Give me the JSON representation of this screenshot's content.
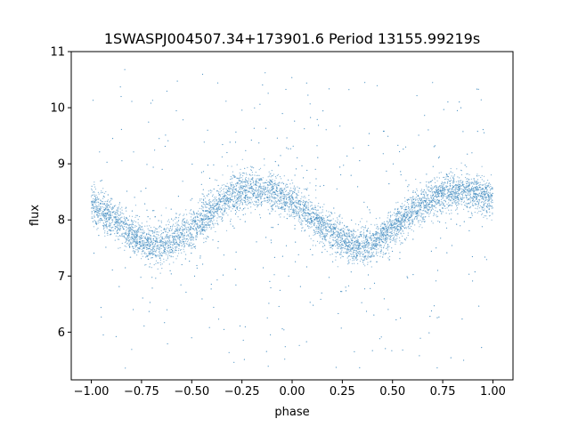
{
  "chart_data": {
    "type": "scatter",
    "title": "1SWASPJ004507.34+173901.6 Period 13155.99219s",
    "xlabel": "phase",
    "ylabel": "flux",
    "xlim": [
      -1.1,
      1.1
    ],
    "ylim": [
      5.15,
      11.0
    ],
    "x_ticks": [
      -1.0,
      -0.75,
      -0.5,
      -0.25,
      0.0,
      0.25,
      0.5,
      0.75,
      1.0
    ],
    "x_tick_labels": [
      "−1.00",
      "−0.75",
      "−0.50",
      "−0.25",
      "0.00",
      "0.25",
      "0.50",
      "0.75",
      "1.00"
    ],
    "y_ticks": [
      6,
      7,
      8,
      9,
      10,
      11
    ],
    "y_tick_labels": [
      "6",
      "7",
      "8",
      "9",
      "10",
      "11"
    ],
    "grid": false,
    "legend": "none",
    "point_color": "#1f77b4",
    "x_range_of_points": [
      -1.0,
      1.0
    ],
    "series": [
      {
        "trend_description_points": {
          "x": [
            -1.0,
            -0.9,
            -0.8,
            -0.7,
            -0.6,
            -0.5,
            -0.4,
            -0.3,
            -0.2,
            -0.1,
            0.0,
            0.1,
            0.2,
            0.3,
            0.4,
            0.5,
            0.6,
            0.7,
            0.8,
            0.9,
            1.0
          ],
          "y": [
            8.25,
            8.05,
            7.75,
            7.55,
            7.6,
            7.85,
            8.15,
            8.45,
            8.55,
            8.5,
            8.35,
            8.05,
            7.75,
            7.55,
            7.55,
            7.85,
            8.15,
            8.4,
            8.5,
            8.5,
            8.35
          ]
        },
        "band_halfwidth": 0.3,
        "outlier_range": [
          5.35,
          10.7
        ]
      }
    ]
  }
}
